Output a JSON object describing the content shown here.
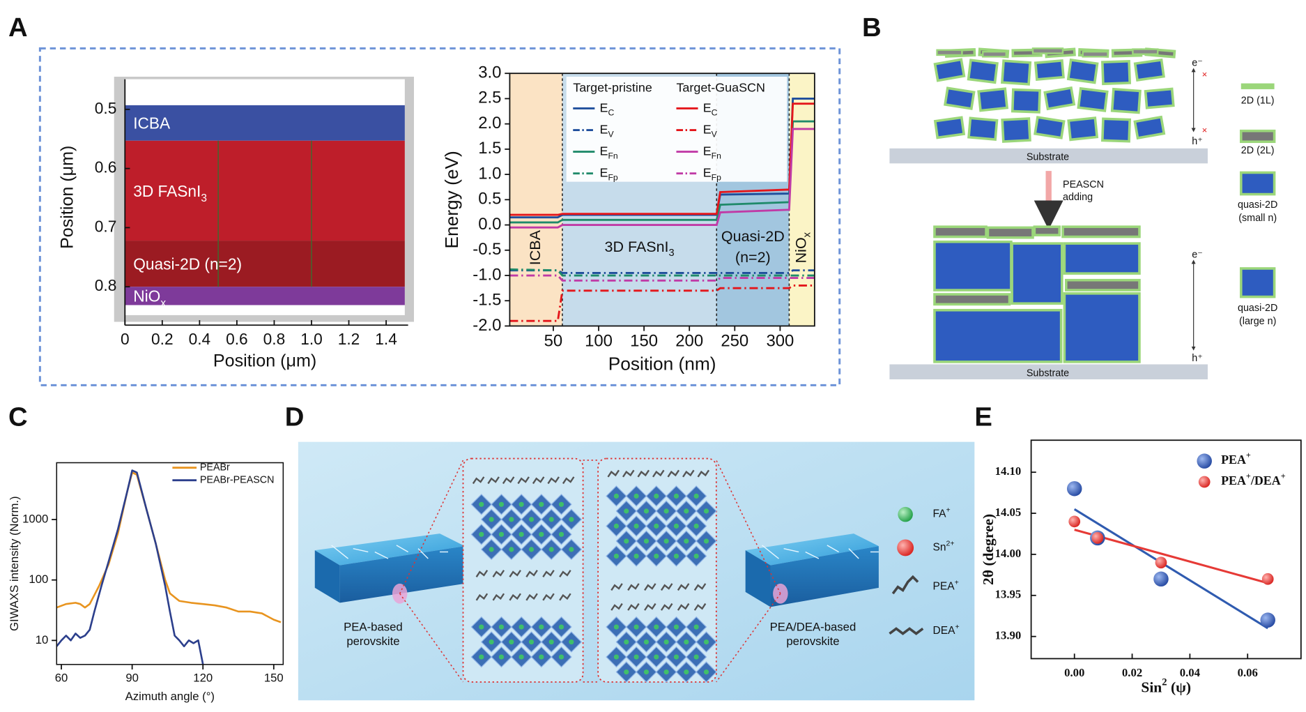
{
  "panel_labels": [
    "A",
    "B",
    "C",
    "D",
    "E"
  ],
  "chart_data": [
    {
      "type": "layers",
      "xlabel": "Position (μm)",
      "ylabel": "Position (μm)",
      "xlim": [
        0,
        1.5
      ],
      "ylim": [
        0.449,
        0.848
      ],
      "y_inverted": true,
      "xticks": [
        0,
        0.2,
        0.4,
        0.6,
        0.8,
        {
          "value": 1,
          "label": "1.0"
        },
        1.2,
        1.4
      ],
      "yticks": [
        0.5,
        0.6,
        0.7,
        0.8
      ],
      "layers": [
        {
          "label": [
            "ICBA"
          ],
          "from": 0.493,
          "to": 0.553,
          "color": "#3a50a2"
        },
        {
          "label": [
            "3D FASnI",
            {
              "sub": "3"
            }
          ],
          "from": 0.553,
          "to": 0.722,
          "color": "#be1e2a"
        },
        {
          "label": [
            "Quasi-2D (n=2)"
          ],
          "from": 0.722,
          "to": 0.8,
          "color": "#9b1b22"
        },
        {
          "label": [
            "NiO",
            {
              "sub": "x"
            }
          ],
          "from": 0.8,
          "to": 0.831,
          "color": "#7e3a9a"
        }
      ],
      "vlines": [
        0.5,
        1.0
      ],
      "vline_color": "#3d6b2f"
    },
    {
      "type": "line",
      "xlabel": "Position (nm)",
      "ylabel": "Energy (eV)",
      "xlim": [
        2,
        338
      ],
      "ylim": [
        -2,
        3
      ],
      "xticks": [
        50,
        100,
        150,
        200,
        250,
        300
      ],
      "yticks": [
        {
          "value": 3,
          "label": "3.0"
        },
        2.5,
        {
          "value": 2,
          "label": "2.0"
        },
        1.5,
        {
          "value": 1,
          "label": "1.0"
        },
        0.5,
        {
          "value": 0,
          "label": "0.0"
        },
        -0.5,
        {
          "value": -1,
          "label": "-1.0"
        },
        -1.5,
        {
          "value": -2,
          "label": "-2.0"
        }
      ],
      "regions": [
        {
          "label": [
            [
              "ICBA"
            ]
          ],
          "from": 2,
          "to": 60,
          "color": "#fbe3c4"
        },
        {
          "label": [
            [
              "3D FASnI",
              {
                "sub": "3"
              }
            ]
          ],
          "from": 60,
          "to": 230,
          "color": "#c6dceb"
        },
        {
          "label": [
            [
              "Quasi-2D"
            ],
            [
              "(n=2)"
            ]
          ],
          "from": 230,
          "to": 310,
          "color": "#a2c6df"
        },
        {
          "label": [
            [
              "NiO",
              {
                "sub": "x"
              }
            ]
          ],
          "from": 310,
          "to": 338,
          "color": "#fbf4c6"
        }
      ],
      "legend_groups": [
        "Target-pristine",
        "Target-GuaSCN"
      ],
      "x": [
        2,
        55,
        60,
        230,
        234,
        310,
        314,
        338
      ],
      "series": [
        {
          "name": [
            "E",
            {
              "sub": "C"
            }
          ],
          "group": 0,
          "color": "#1f4e9c",
          "style": "solid",
          "values": [
            0.15,
            0.15,
            0.2,
            0.2,
            0.6,
            0.62,
            2.5,
            2.5
          ]
        },
        {
          "name": [
            "E",
            {
              "sub": "V"
            }
          ],
          "group": 0,
          "color": "#1f4e9c",
          "style": "dashdot",
          "values": [
            -0.9,
            -0.9,
            -0.95,
            -0.95,
            -0.95,
            -0.95,
            -0.9,
            -0.9
          ]
        },
        {
          "name": [
            "E",
            {
              "sub": "Fn"
            }
          ],
          "group": 0,
          "color": "#1f8a6a",
          "style": "solid",
          "values": [
            0.05,
            0.05,
            0.1,
            0.1,
            0.4,
            0.45,
            2.05,
            2.05
          ]
        },
        {
          "name": [
            "E",
            {
              "sub": "Fp"
            }
          ],
          "group": 0,
          "color": "#1f8a6a",
          "style": "dashdot",
          "values": [
            -0.88,
            -0.9,
            -1.0,
            -1.0,
            -1.0,
            -1.0,
            -1.0,
            -1.0
          ]
        },
        {
          "name": [
            "E",
            {
              "sub": "C"
            }
          ],
          "group": 1,
          "color": "#e4161b",
          "style": "solid",
          "values": [
            0.2,
            0.2,
            0.22,
            0.22,
            0.65,
            0.7,
            2.4,
            2.4
          ]
        },
        {
          "name": [
            "E",
            {
              "sub": "V"
            }
          ],
          "group": 1,
          "color": "#e4161b",
          "style": "dashdot",
          "values": [
            -1.9,
            -1.9,
            -1.3,
            -1.3,
            -1.25,
            -1.25,
            -1.2,
            -1.2
          ]
        },
        {
          "name": [
            "E",
            {
              "sub": "Fn"
            }
          ],
          "group": 1,
          "color": "#c03aa6",
          "style": "solid",
          "values": [
            -0.05,
            -0.05,
            0,
            0,
            0.25,
            0.3,
            1.9,
            1.9
          ]
        },
        {
          "name": [
            "E",
            {
              "sub": "Fp"
            }
          ],
          "group": 1,
          "color": "#c03aa6",
          "style": "dashdot",
          "values": [
            -1.0,
            -1.0,
            -1.1,
            -1.1,
            -1.05,
            -1.05,
            -1.05,
            -1.05
          ]
        }
      ]
    },
    {
      "type": "line",
      "xlabel": "Azimuth angle (°)",
      "ylabel": "GIWAXS intensity (Norm.)",
      "log_y": true,
      "xlim": [
        58,
        154
      ],
      "ylim": [
        4,
        8700
      ],
      "xticks": [
        60,
        90,
        120,
        150
      ],
      "yticks": [
        10,
        100,
        1000
      ],
      "series": [
        {
          "name": "PEABr",
          "color": "#e8941f",
          "x": [
            58,
            62,
            66,
            68,
            70,
            72,
            76,
            80,
            84,
            88,
            90,
            92,
            96,
            100,
            104,
            106,
            110,
            115,
            120,
            125,
            130,
            135,
            140,
            145,
            150,
            153
          ],
          "values": [
            35,
            40,
            42,
            40,
            35,
            40,
            80,
            180,
            600,
            3000,
            6000,
            5500,
            1500,
            400,
            100,
            60,
            45,
            42,
            40,
            38,
            35,
            30,
            30,
            28,
            22,
            20
          ]
        },
        {
          "name": "PEABr-PEASCN",
          "color": "#2c3f8c",
          "x": [
            58,
            60,
            62,
            64,
            66,
            68,
            70,
            72,
            74,
            77,
            80,
            84,
            88,
            90,
            92,
            96,
            100,
            104,
            106,
            108,
            110,
            112,
            114,
            116,
            118,
            120
          ],
          "values": [
            8,
            10,
            12,
            10,
            13,
            11,
            12,
            15,
            30,
            80,
            200,
            700,
            3000,
            6500,
            6000,
            1500,
            400,
            80,
            30,
            12,
            10,
            8,
            10,
            9,
            10,
            4
          ]
        }
      ]
    },
    {
      "type": "scatter",
      "xlabel": [
        "Sin",
        {
          "sup": "2"
        },
        " (ψ)"
      ],
      "ylabel": "2θ (degree)",
      "xlim": [
        -0.015,
        0.0785
      ],
      "ylim": [
        13.873,
        14.139
      ],
      "xticks": [
        {
          "value": 0,
          "label": "0.00"
        },
        0.02,
        0.04,
        0.06
      ],
      "yticks": [
        {
          "value": 13.9,
          "label": "13.90"
        },
        13.95,
        {
          "value": 14,
          "label": "14.00"
        },
        14.05,
        {
          "value": 14.1,
          "label": "14.10"
        }
      ],
      "series": [
        {
          "name": [
            "PEA",
            {
              "sup": "+"
            }
          ],
          "color": "#2f5bb0",
          "x": [
            0,
            0.008,
            0.03,
            0.067
          ],
          "values": [
            14.08,
            14.02,
            13.97,
            13.92
          ],
          "fit_x": [
            0,
            0.067
          ],
          "fit_y": [
            14.055,
            13.91
          ]
        },
        {
          "name": [
            "PEA",
            {
              "sup": "+"
            },
            "/DEA",
            {
              "sup": "+"
            }
          ],
          "color": "#e63a36",
          "x": [
            0,
            0.008,
            0.03,
            0.067
          ],
          "values": [
            14.04,
            14.02,
            13.99,
            13.97
          ],
          "fit_x": [
            0,
            0.067
          ],
          "fit_y": [
            14.03,
            13.965
          ]
        }
      ]
    }
  ],
  "diagram_b": {
    "substrate": [
      "Substrate",
      "Substrate"
    ],
    "arrow_label": [
      "PEASCN",
      "adding"
    ],
    "carriers": [
      "e⁻",
      "h⁺",
      "e⁻",
      "h⁺"
    ],
    "legend": [
      [
        "2D (1L)"
      ],
      [
        "2D (2L)"
      ],
      [
        "quasi-2D",
        "(small n)"
      ],
      [
        "quasi-2D",
        "(large n)"
      ]
    ]
  },
  "diagram_d": {
    "films": [
      [
        "PEA-based",
        "perovskite"
      ],
      [
        "PEA/DEA-based",
        "perovskite"
      ]
    ],
    "legend": [
      [
        "FA",
        {
          "sup": "+"
        }
      ],
      [
        "Sn",
        {
          "sup": "2+"
        }
      ],
      [
        "PEA",
        {
          "sup": "+"
        }
      ],
      [
        "DEA",
        {
          "sup": "+"
        }
      ]
    ]
  }
}
